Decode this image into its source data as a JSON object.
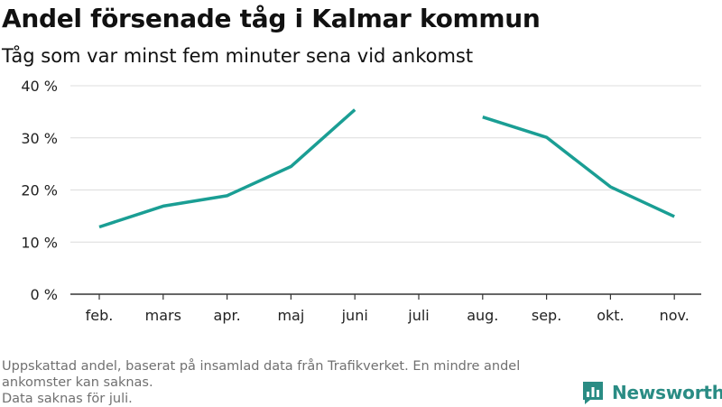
{
  "header": {
    "title": "Andel försenade tåg i Kalmar kommun",
    "subtitle": "Tåg som var minst fem minuter sena vid ankomst"
  },
  "footnote": {
    "line1": "Uppskattad andel, baserat på insamlad data från Trafikverket. En mindre andel ankomster kan saknas.",
    "line2": "Data saknas för juli."
  },
  "brand": {
    "name": "Newsworthy",
    "icon": "bar-chart-logo-icon",
    "color": "#2a8c84"
  },
  "chart_data": {
    "type": "line",
    "title": "Andel försenade tåg i Kalmar kommun",
    "subtitle": "Tåg som var minst fem minuter sena vid ankomst",
    "categories": [
      "feb.",
      "mars",
      "apr.",
      "maj",
      "juni",
      "juli",
      "aug.",
      "sep.",
      "okt.",
      "nov."
    ],
    "series": [
      {
        "values": [
          12.9,
          16.9,
          18.9,
          24.5,
          35.4,
          null,
          34.0,
          30.1,
          20.6,
          14.9
        ],
        "color": "#1a9e94"
      }
    ],
    "ylim": [
      0,
      40
    ],
    "yticks": [
      0,
      10,
      20,
      30,
      40
    ],
    "ytick_labels": [
      "0 %",
      "10 %",
      "20 %",
      "30 %",
      "40 %"
    ],
    "grid": true,
    "xlabel": "",
    "ylabel": ""
  }
}
